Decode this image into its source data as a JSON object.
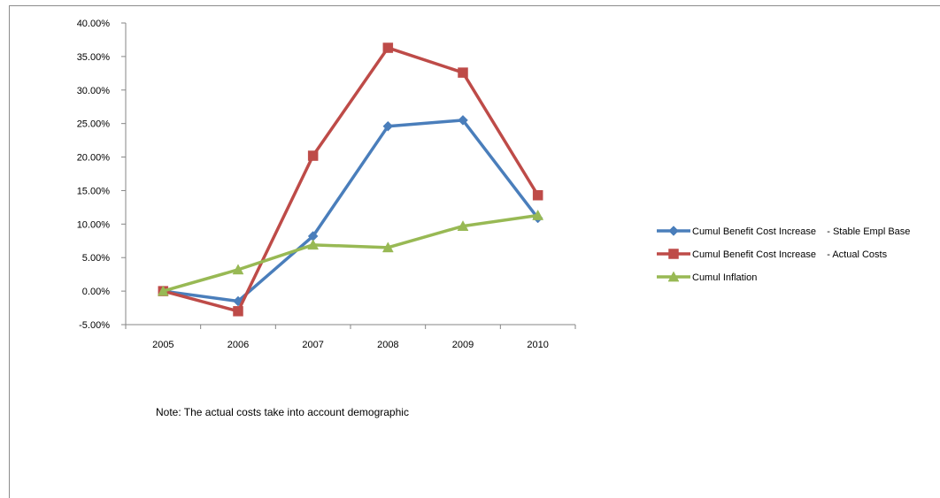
{
  "chart_data": {
    "type": "line",
    "title": "",
    "xlabel": "",
    "ylabel": "",
    "categories": [
      "2005",
      "2006",
      "2007",
      "2008",
      "2009",
      "2010"
    ],
    "y_ticks": [
      "-5.00%",
      "0.00%",
      "5.00%",
      "10.00%",
      "15.00%",
      "20.00%",
      "25.00%",
      "30.00%",
      "35.00%",
      "40.00%"
    ],
    "ylim": [
      -5,
      40
    ],
    "grid": false,
    "legend_position": "right",
    "series": [
      {
        "name": "Cumul Benefit Cost Increase    - Stable Empl Base",
        "values": [
          0.0,
          -1.5,
          8.2,
          24.6,
          25.5,
          10.9
        ],
        "color": "#4a7ebb",
        "marker": "diamond"
      },
      {
        "name": "Cumul Benefit Cost Increase    - Actual Costs",
        "values": [
          0.0,
          -3.0,
          20.2,
          36.3,
          32.6,
          14.3
        ],
        "color": "#be4b48",
        "marker": "square"
      },
      {
        "name": "Cumul Inflation",
        "values": [
          0.0,
          3.2,
          6.9,
          6.5,
          9.7,
          11.3
        ],
        "color": "#98b954",
        "marker": "triangle"
      }
    ],
    "annotations": [
      "Note:  The actual costs take into account demographic"
    ]
  }
}
